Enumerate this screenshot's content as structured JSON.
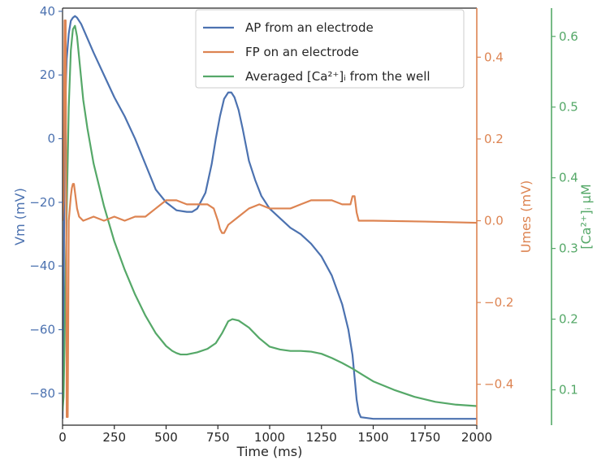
{
  "chart_data": {
    "type": "line",
    "xlabel": "Time (ms)",
    "xlim": [
      0,
      2000
    ],
    "xticks": [
      0,
      250,
      500,
      750,
      1000,
      1250,
      1500,
      1750,
      2000
    ],
    "grid": false,
    "legend_position": "top-center",
    "colors": {
      "ap": "#4c72b0",
      "fp": "#dd8452",
      "ca": "#55a868",
      "axis": "#262626"
    },
    "axes": [
      {
        "id": "vm",
        "side": "left",
        "label": "Vm (mV)",
        "ylim": [
          -90,
          41
        ],
        "ticks": [
          -80,
          -60,
          -40,
          -20,
          0,
          20,
          40
        ],
        "tick_labels": [
          "−80",
          "−60",
          "−40",
          "−20",
          "0",
          "20",
          "40"
        ],
        "color": "#4c72b0"
      },
      {
        "id": "um",
        "side": "right",
        "label": "Umes (mV)",
        "ylim": [
          -0.5,
          0.52
        ],
        "ticks": [
          -0.4,
          -0.2,
          0.0,
          0.2,
          0.4
        ],
        "tick_labels": [
          "−0.4",
          "−0.2",
          "0.0",
          "0.2",
          "0.4"
        ],
        "color": "#dd8452"
      },
      {
        "id": "ca",
        "side": "right-outer",
        "label": "[Ca²⁺]ᵢ μM",
        "ylim": [
          0.05,
          0.64
        ],
        "ticks": [
          0.1,
          0.2,
          0.3,
          0.4,
          0.5,
          0.6
        ],
        "tick_labels": [
          "0.1",
          "0.2",
          "0.3",
          "0.4",
          "0.5",
          "0.6"
        ],
        "color": "#55a868"
      }
    ],
    "series": [
      {
        "name": "AP from an electrode",
        "axis": "vm",
        "color": "#4c72b0",
        "x": [
          0,
          5,
          10,
          20,
          30,
          40,
          50,
          60,
          70,
          90,
          110,
          150,
          200,
          250,
          300,
          350,
          400,
          450,
          500,
          550,
          600,
          625,
          650,
          690,
          720,
          740,
          760,
          780,
          800,
          815,
          830,
          850,
          870,
          900,
          930,
          960,
          1000,
          1050,
          1100,
          1150,
          1200,
          1250,
          1300,
          1350,
          1380,
          1400,
          1410,
          1420,
          1430,
          1440,
          1500,
          1750,
          2000
        ],
        "y": [
          -88,
          -60,
          5,
          25,
          33,
          37,
          38,
          38.5,
          38,
          36,
          33,
          27,
          20,
          13,
          7,
          0,
          -8,
          -16,
          -20,
          -22.5,
          -23,
          -23,
          -22,
          -17,
          -8,
          0,
          7,
          12.5,
          14.5,
          14.5,
          13,
          9,
          3,
          -7,
          -13,
          -18,
          -22,
          -25,
          -28,
          -30,
          -33,
          -37,
          -43,
          -52,
          -60,
          -68,
          -75,
          -82,
          -86,
          -87.5,
          -88,
          -88,
          -88
        ]
      },
      {
        "name": "FP on an electrode",
        "axis": "um",
        "color": "#dd8452",
        "x": [
          0,
          5,
          10,
          15,
          18,
          20,
          25,
          30,
          35,
          40,
          45,
          50,
          55,
          60,
          70,
          80,
          100,
          150,
          200,
          250,
          300,
          350,
          400,
          450,
          500,
          550,
          600,
          650,
          700,
          730,
          750,
          760,
          770,
          780,
          790,
          800,
          850,
          900,
          950,
          1000,
          1050,
          1100,
          1150,
          1200,
          1250,
          1300,
          1350,
          1390,
          1400,
          1410,
          1420,
          1430,
          1450,
          1500,
          1750,
          2000
        ],
        "y": [
          0.0,
          0.05,
          0.49,
          0.49,
          0.0,
          -0.48,
          -0.48,
          0.0,
          0.03,
          0.06,
          0.08,
          0.09,
          0.09,
          0.07,
          0.03,
          0.01,
          0.0,
          0.01,
          0.0,
          0.01,
          0.0,
          0.01,
          0.01,
          0.03,
          0.05,
          0.05,
          0.04,
          0.04,
          0.04,
          0.03,
          0.0,
          -0.02,
          -0.03,
          -0.03,
          -0.02,
          -0.01,
          0.01,
          0.03,
          0.04,
          0.03,
          0.03,
          0.03,
          0.04,
          0.05,
          0.05,
          0.05,
          0.04,
          0.04,
          0.06,
          0.06,
          0.02,
          0.0,
          0.0,
          0.0,
          -0.002,
          -0.005
        ]
      },
      {
        "name": "Averaged [Ca²⁺]ᵢ from the well",
        "axis": "ca",
        "color": "#55a868",
        "x": [
          0,
          5,
          10,
          20,
          30,
          40,
          50,
          60,
          70,
          80,
          90,
          100,
          120,
          150,
          200,
          250,
          300,
          350,
          400,
          450,
          500,
          530,
          550,
          570,
          600,
          650,
          700,
          740,
          770,
          800,
          820,
          850,
          900,
          950,
          1000,
          1050,
          1100,
          1150,
          1200,
          1250,
          1300,
          1350,
          1400,
          1450,
          1500,
          1600,
          1700,
          1800,
          1900,
          2000
        ],
        "y": [
          0.07,
          0.09,
          0.17,
          0.35,
          0.5,
          0.58,
          0.61,
          0.615,
          0.6,
          0.57,
          0.54,
          0.51,
          0.47,
          0.42,
          0.36,
          0.31,
          0.27,
          0.235,
          0.205,
          0.18,
          0.162,
          0.155,
          0.152,
          0.15,
          0.15,
          0.153,
          0.158,
          0.166,
          0.18,
          0.197,
          0.2,
          0.198,
          0.188,
          0.173,
          0.161,
          0.157,
          0.155,
          0.155,
          0.154,
          0.151,
          0.145,
          0.138,
          0.13,
          0.121,
          0.112,
          0.1,
          0.09,
          0.083,
          0.079,
          0.077
        ]
      }
    ]
  }
}
